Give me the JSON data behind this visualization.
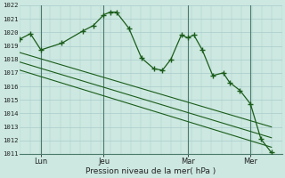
{
  "xlabel": "Pression niveau de la mer( hPa )",
  "ylim": [
    1011,
    1022
  ],
  "yticks": [
    1011,
    1012,
    1013,
    1014,
    1015,
    1016,
    1017,
    1018,
    1019,
    1020,
    1021,
    1022
  ],
  "xtick_labels": [
    "Lun",
    "Jeu",
    "Mar",
    "Mer"
  ],
  "xtick_positions": [
    1,
    4,
    8,
    11
  ],
  "bg_color": "#cce8e0",
  "grid_color": "#aacccc",
  "line_color": "#1a5c1a",
  "vline_color": "#4a7a6a",
  "main_x": [
    0,
    0.5,
    1,
    2,
    3,
    3.5,
    4,
    4.3,
    4.6,
    5.2,
    5.8,
    6.4,
    6.8,
    7.2,
    7.7,
    8,
    8.3,
    8.7,
    9.2,
    9.7,
    10,
    10.5,
    11,
    11.5,
    12
  ],
  "main_y": [
    1019.5,
    1019.9,
    1018.7,
    1019.2,
    1020.1,
    1020.5,
    1021.3,
    1021.5,
    1021.5,
    1020.3,
    1018.1,
    1017.3,
    1017.2,
    1018.0,
    1019.8,
    1019.6,
    1019.8,
    1018.7,
    1016.8,
    1017.0,
    1016.3,
    1015.7,
    1014.7,
    1012.1,
    1011.1
  ],
  "upper_line_x": [
    0,
    12
  ],
  "upper_line_y": [
    1018.5,
    1013.0
  ],
  "lower_line_x": [
    0,
    12
  ],
  "lower_line_y": [
    1017.2,
    1011.5
  ],
  "middle_line_x": [
    0,
    12
  ],
  "middle_line_y": [
    1017.8,
    1012.2
  ],
  "vline_x": [
    1,
    4,
    8,
    11
  ],
  "xlim": [
    0,
    12.5
  ]
}
